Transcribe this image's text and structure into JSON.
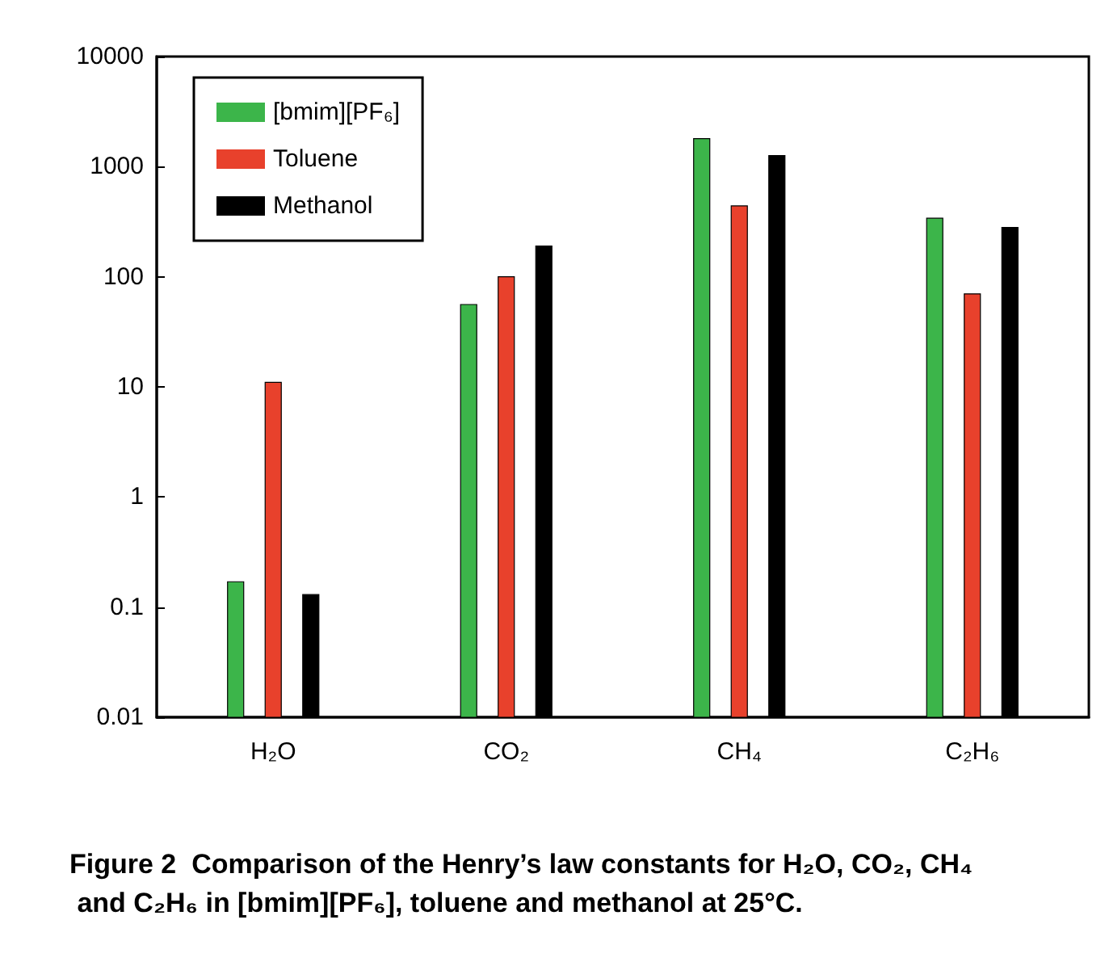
{
  "chart_data": {
    "type": "bar",
    "title": "Figure 2  Comparison of the Henry’s law constants for H₂O, CO₂, CH₄ and C₂H₆ in [bmim][PF₆], toluene and methanol at 25°C.",
    "categories": [
      "H₂O",
      "CO₂",
      "CH₄",
      "C₂H₆"
    ],
    "series": [
      {
        "name": "[bmim][PF₆]",
        "color": "#3cb54a",
        "values": [
          0.17,
          56,
          1800,
          340
        ]
      },
      {
        "name": "Toluene",
        "color": "#e8412c",
        "values": [
          11,
          100,
          440,
          70
        ]
      },
      {
        "name": "Methanol",
        "color": "#000000",
        "values": [
          0.13,
          190,
          1260,
          280
        ]
      }
    ],
    "log": true,
    "ylim": [
      0.01,
      10000
    ],
    "yticks": [
      0.01,
      0.1,
      1,
      10,
      100,
      1000,
      10000
    ],
    "grid": false,
    "legend": "top left"
  }
}
